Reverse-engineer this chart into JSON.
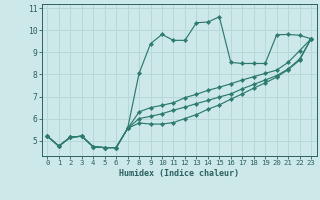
{
  "xlabel": "Humidex (Indice chaleur)",
  "x_values": [
    0,
    1,
    2,
    3,
    4,
    5,
    6,
    7,
    8,
    9,
    10,
    11,
    12,
    13,
    14,
    15,
    16,
    17,
    18,
    19,
    20,
    21,
    22,
    23
  ],
  "line1_y": [
    5.2,
    4.75,
    5.15,
    5.2,
    4.72,
    4.68,
    4.68,
    5.55,
    8.05,
    9.4,
    9.82,
    9.55,
    9.55,
    10.35,
    10.38,
    10.62,
    8.55,
    8.5,
    8.5,
    8.5,
    9.8,
    9.82,
    9.78,
    9.62
  ],
  "line2_y": [
    5.2,
    4.75,
    5.15,
    5.2,
    4.72,
    4.68,
    4.68,
    5.55,
    6.3,
    6.5,
    6.6,
    6.72,
    6.95,
    7.1,
    7.28,
    7.42,
    7.58,
    7.75,
    7.9,
    8.05,
    8.2,
    8.55,
    9.08,
    9.62
  ],
  "line3_y": [
    5.2,
    4.75,
    5.15,
    5.2,
    4.72,
    4.68,
    4.68,
    5.55,
    6.0,
    6.1,
    6.22,
    6.38,
    6.52,
    6.68,
    6.82,
    6.98,
    7.12,
    7.35,
    7.55,
    7.75,
    7.95,
    8.25,
    8.7,
    9.62
  ],
  "line4_y": [
    5.2,
    4.75,
    5.15,
    5.2,
    4.72,
    4.68,
    4.68,
    5.55,
    5.8,
    5.75,
    5.75,
    5.82,
    6.0,
    6.18,
    6.42,
    6.62,
    6.88,
    7.12,
    7.38,
    7.62,
    7.88,
    8.22,
    8.65,
    9.62
  ],
  "line_color": "#2d7a6e",
  "bg_color": "#cce8e8",
  "grid_color": "#b8d8d8",
  "axis_color": "#2d6060",
  "xlim": [
    -0.5,
    23.5
  ],
  "ylim": [
    4.3,
    11.2
  ],
  "yticks": [
    5,
    6,
    7,
    8,
    9,
    10,
    11
  ],
  "xticks": [
    0,
    1,
    2,
    3,
    4,
    5,
    6,
    7,
    8,
    9,
    10,
    11,
    12,
    13,
    14,
    15,
    16,
    17,
    18,
    19,
    20,
    21,
    22,
    23
  ],
  "markersize": 2.2,
  "linewidth": 0.85
}
